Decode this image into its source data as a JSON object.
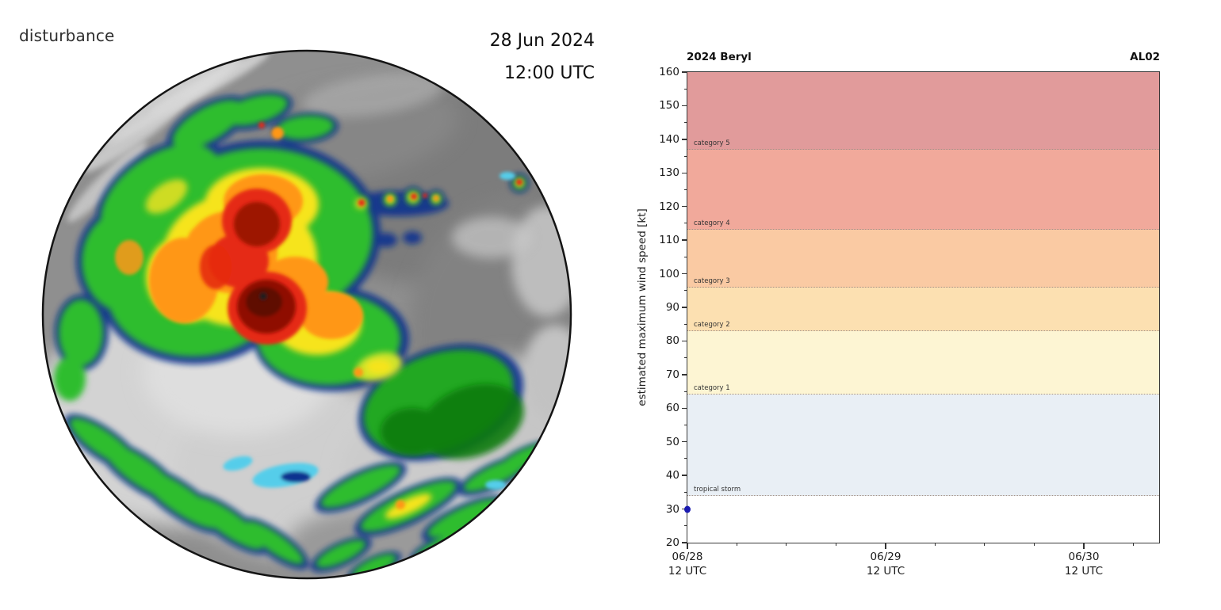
{
  "left_panel": {
    "classification_label": "disturbance",
    "datetime": {
      "date": "28 Jun 2024",
      "time": "12:00 UTC"
    }
  },
  "chart_data": {
    "type": "scatter",
    "title": "2024 Beryl",
    "right_label": "AL02",
    "ylabel": "estimated maximum wind speed [kt]",
    "ylim": [
      20,
      160
    ],
    "y_ticks": [
      20,
      30,
      40,
      50,
      60,
      70,
      80,
      90,
      100,
      110,
      120,
      130,
      140,
      150,
      160
    ],
    "y_minor_step": 5,
    "x_ticks": [
      {
        "date": "06/28",
        "time": "12 UTC",
        "frac": 0.0
      },
      {
        "date": "06/29",
        "time": "12 UTC",
        "frac": 0.4202
      },
      {
        "date": "06/30",
        "time": "12 UTC",
        "frac": 0.8403
      }
    ],
    "x_minor_frac_step": 0.10504,
    "bands": [
      {
        "label": "tropical storm",
        "from": 34,
        "to": 64,
        "color": "#e9eff5"
      },
      {
        "label": "category 1",
        "from": 64,
        "to": 83,
        "color": "#fdf5d3"
      },
      {
        "label": "category 2",
        "from": 83,
        "to": 96,
        "color": "#fce0b1"
      },
      {
        "label": "category 3",
        "from": 96,
        "to": 113,
        "color": "#facaa3"
      },
      {
        "label": "category 4",
        "from": 113,
        "to": 137,
        "color": "#f1a99b"
      },
      {
        "label": "category 5",
        "from": 137,
        "to": 160,
        "color": "#e19b9b"
      }
    ],
    "points": [
      {
        "x_label": "06/28 12 UTC",
        "x_frac": 0.0,
        "wind_kt": 30
      }
    ],
    "colors": {
      "point": "#1a1ab0",
      "axis": "#333333",
      "band_boundary_line": "#a39287",
      "band_label_text": "#333333"
    },
    "grid": false,
    "legend": null
  }
}
